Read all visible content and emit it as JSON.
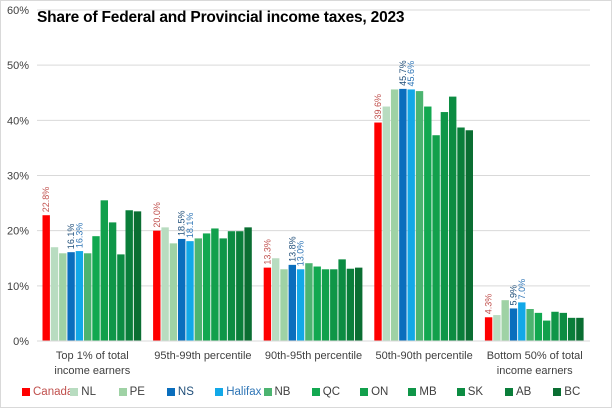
{
  "chart_data": {
    "type": "bar",
    "title": "Share of Federal and Provincial income taxes, 2023",
    "xlabel": "",
    "ylabel": "",
    "ylim": [
      0,
      60
    ],
    "yticks": [
      "0%",
      "10%",
      "20%",
      "30%",
      "40%",
      "50%",
      "60%"
    ],
    "ytick_values": [
      0,
      10,
      20,
      30,
      40,
      50,
      60
    ],
    "grid": true,
    "legend_position": "bottom",
    "categories": [
      [
        "Top 1% of total",
        "income earners"
      ],
      [
        "95th-99th percentile"
      ],
      [
        "90th-95th percentile"
      ],
      [
        "50th-90th percentile"
      ],
      [
        "Bottom 50% of total",
        "income earners"
      ]
    ],
    "series": [
      {
        "name": "Canada",
        "color": "#FF0000",
        "label_color": "#C0504D",
        "values": [
          22.8,
          20.0,
          13.3,
          39.6,
          4.3
        ],
        "labels": [
          "22.8%",
          "20.0%",
          "13.3%",
          "39.6%",
          "4.3%"
        ]
      },
      {
        "name": "NL",
        "color": "#B8DCC0",
        "values": [
          17.0,
          20.6,
          15.0,
          42.5,
          4.7
        ]
      },
      {
        "name": "PE",
        "color": "#9FD2A5",
        "values": [
          15.9,
          17.7,
          13.0,
          45.6,
          7.4
        ]
      },
      {
        "name": "NS",
        "color": "#0A6EBD",
        "label_color": "#1F4E79",
        "values": [
          16.1,
          18.5,
          13.8,
          45.7,
          5.9
        ],
        "labels": [
          "16.1%",
          "18.5%",
          "13.8%",
          "45.7%",
          "5.9%"
        ]
      },
      {
        "name": "Halifax",
        "color": "#12A8E8",
        "label_color": "#2E75B6",
        "values": [
          16.3,
          18.1,
          13.0,
          45.6,
          7.0
        ],
        "labels": [
          "16.3%",
          "18.1%",
          "13.0%",
          "45.6%",
          "7.0%"
        ]
      },
      {
        "name": "NB",
        "color": "#4CB470",
        "values": [
          15.9,
          18.6,
          14.1,
          45.3,
          5.8
        ]
      },
      {
        "name": "QC",
        "color": "#12A850",
        "values": [
          19.0,
          19.5,
          13.5,
          42.5,
          5.1
        ]
      },
      {
        "name": "ON",
        "color": "#12A04C",
        "values": [
          25.5,
          20.4,
          13.0,
          37.3,
          3.7
        ]
      },
      {
        "name": "MB",
        "color": "#0F9648",
        "values": [
          21.5,
          18.6,
          13.0,
          41.5,
          5.3
        ]
      },
      {
        "name": "SK",
        "color": "#0C8C42",
        "values": [
          15.7,
          19.9,
          14.8,
          44.3,
          5.1
        ]
      },
      {
        "name": "AB",
        "color": "#0A7E3A",
        "values": [
          23.7,
          19.9,
          13.1,
          38.7,
          4.2
        ]
      },
      {
        "name": "BC",
        "color": "#0A6E32",
        "values": [
          23.5,
          20.6,
          13.3,
          38.2,
          4.2
        ]
      }
    ]
  }
}
